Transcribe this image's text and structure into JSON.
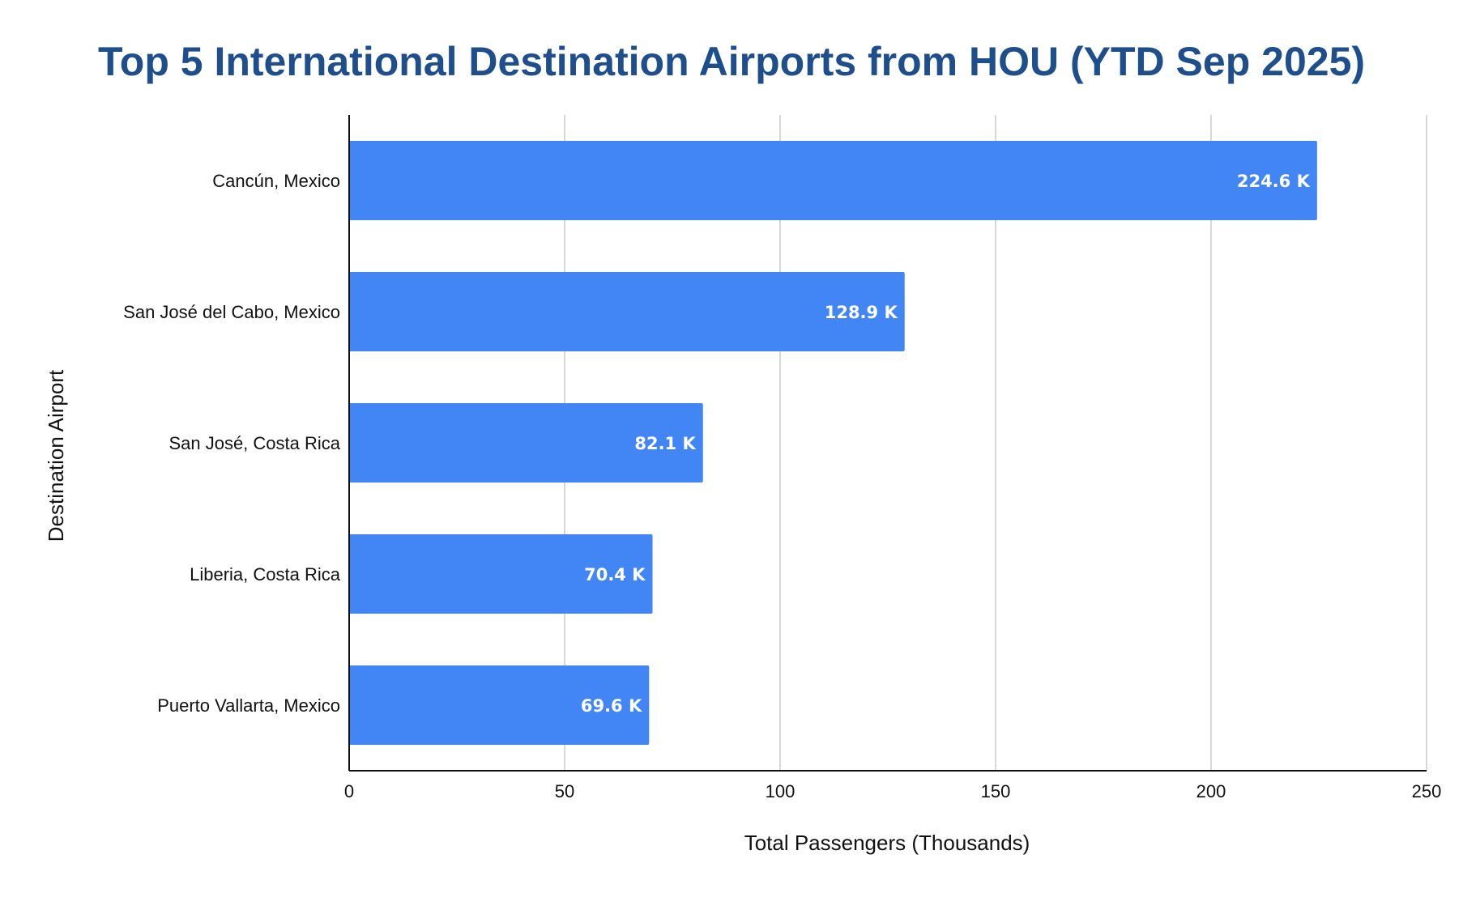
{
  "chart_data": {
    "type": "bar",
    "orientation": "horizontal",
    "title": "Top 5 International Destination Airports from HOU (YTD Sep 2025)",
    "xlabel": "Total Passengers (Thousands)",
    "ylabel": "Destination Airport",
    "categories": [
      "Cancún, Mexico",
      "San José del Cabo, Mexico",
      "San José, Costa Rica",
      "Liberia, Costa Rica",
      "Puerto Vallarta, Mexico"
    ],
    "values": [
      224.6,
      128.9,
      82.1,
      70.4,
      69.6
    ],
    "data_labels": [
      "224.6 K",
      "128.9 K",
      "82.1 K",
      "70.4 K",
      "69.6 K"
    ],
    "xlim": [
      0,
      250
    ],
    "x_ticks": [
      0,
      50,
      100,
      150,
      200,
      250
    ],
    "x_tick_labels": [
      "0",
      "50",
      "100",
      "150",
      "200",
      "250"
    ],
    "grid": "vertical",
    "legend": "none",
    "colors": {
      "bar": "#4285f4",
      "title": "#1f4e8c",
      "data_label": "#ffffff"
    }
  }
}
